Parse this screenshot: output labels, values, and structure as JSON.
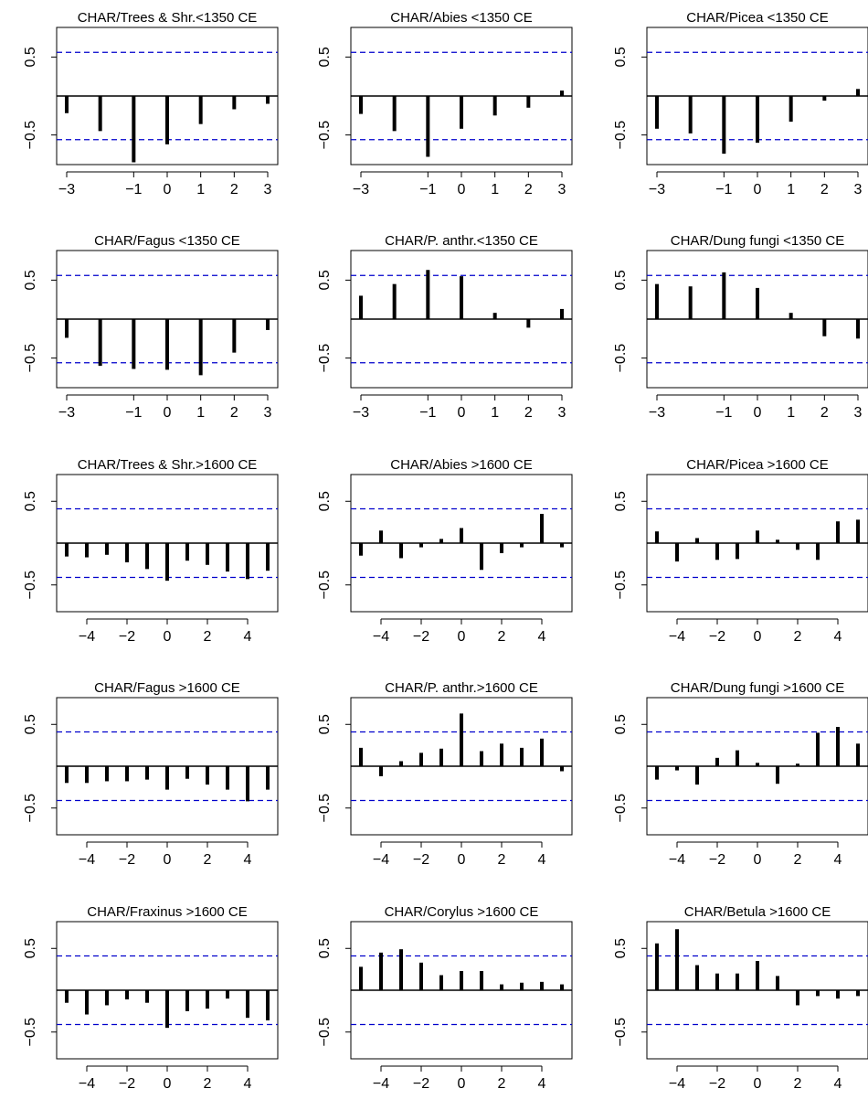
{
  "style": {
    "bar_color": "#000000",
    "confidence_line_color": "#0000cc",
    "axis_color": "#000000",
    "background": "#ffffff"
  },
  "chart_data": [
    {
      "type": "bar",
      "title": "CHAR/Trees & Shr.<1350 CE",
      "x": [
        -3,
        -2,
        -1,
        0,
        1,
        2,
        3
      ],
      "values": [
        -0.22,
        -0.45,
        -0.85,
        -0.62,
        -0.36,
        -0.17,
        -0.1
      ],
      "ci": [
        0.56,
        -0.56
      ],
      "ylim": [
        -0.88,
        0.88
      ],
      "yticks": [
        "0.5",
        "-0.5"
      ],
      "xticks": [
        "-3",
        "-1",
        "0",
        "1",
        "2",
        "3"
      ],
      "xlim": [
        -3.3,
        3.3
      ]
    },
    {
      "type": "bar",
      "title": "CHAR/Abies <1350 CE",
      "x": [
        -3,
        -2,
        -1,
        0,
        1,
        2,
        3
      ],
      "values": [
        -0.23,
        -0.45,
        -0.78,
        -0.42,
        -0.25,
        -0.15,
        0.07
      ],
      "ci": [
        0.56,
        -0.56
      ],
      "ylim": [
        -0.88,
        0.88
      ],
      "yticks": [
        "0.5",
        "-0.5"
      ],
      "xticks": [
        "-3",
        "-1",
        "0",
        "1",
        "2",
        "3"
      ],
      "xlim": [
        -3.3,
        3.3
      ]
    },
    {
      "type": "bar",
      "title": "CHAR/Picea <1350 CE",
      "x": [
        -3,
        -2,
        -1,
        0,
        1,
        2,
        3
      ],
      "values": [
        -0.42,
        -0.48,
        -0.74,
        -0.6,
        -0.33,
        -0.06,
        0.09
      ],
      "ci": [
        0.56,
        -0.56
      ],
      "ylim": [
        -0.88,
        0.88
      ],
      "yticks": [
        "0.5",
        "-0.5"
      ],
      "xticks": [
        "-3",
        "-1",
        "0",
        "1",
        "2",
        "3"
      ],
      "xlim": [
        -3.3,
        3.3
      ]
    },
    {
      "type": "bar",
      "title": "CHAR/Fagus <1350 CE",
      "x": [
        -3,
        -2,
        -1,
        0,
        1,
        2,
        3
      ],
      "values": [
        -0.24,
        -0.6,
        -0.64,
        -0.65,
        -0.72,
        -0.43,
        -0.14
      ],
      "ci": [
        0.56,
        -0.56
      ],
      "ylim": [
        -0.88,
        0.88
      ],
      "yticks": [
        "0.5",
        "-0.5"
      ],
      "xticks": [
        "-3",
        "-1",
        "0",
        "1",
        "2",
        "3"
      ],
      "xlim": [
        -3.3,
        3.3
      ]
    },
    {
      "type": "bar",
      "title": "CHAR/P. anthr.<1350 CE",
      "x": [
        -3,
        -2,
        -1,
        0,
        1,
        2,
        3
      ],
      "values": [
        0.3,
        0.45,
        0.63,
        0.55,
        0.08,
        -0.11,
        0.13
      ],
      "ci": [
        0.56,
        -0.56
      ],
      "ylim": [
        -0.88,
        0.88
      ],
      "yticks": [
        "0.5",
        "-0.5"
      ],
      "xticks": [
        "-3",
        "-1",
        "0",
        "1",
        "2",
        "3"
      ],
      "xlim": [
        -3.3,
        3.3
      ]
    },
    {
      "type": "bar",
      "title": "CHAR/Dung fungi <1350 CE",
      "x": [
        -3,
        -2,
        -1,
        0,
        1,
        2,
        3
      ],
      "values": [
        0.45,
        0.42,
        0.6,
        0.4,
        0.08,
        -0.22,
        -0.25
      ],
      "ci": [
        0.56,
        -0.56
      ],
      "ylim": [
        -0.88,
        0.88
      ],
      "yticks": [
        "0.5",
        "-0.5"
      ],
      "xticks": [
        "-3",
        "-1",
        "0",
        "1",
        "2",
        "3"
      ],
      "xlim": [
        -3.3,
        3.3
      ]
    },
    {
      "type": "bar",
      "title": "CHAR/Trees & Shr.>1600 CE",
      "x": [
        -5,
        -4,
        -3,
        -2,
        -1,
        0,
        1,
        2,
        3,
        4,
        5
      ],
      "values": [
        -0.16,
        -0.17,
        -0.14,
        -0.23,
        -0.31,
        -0.45,
        -0.21,
        -0.26,
        -0.34,
        -0.43,
        -0.33
      ],
      "ci": [
        0.41,
        -0.41
      ],
      "ylim": [
        -0.82,
        0.82
      ],
      "yticks": [
        "0.5",
        "-0.5"
      ],
      "xticks": [
        "-4",
        "-2",
        "0",
        "2",
        "4"
      ],
      "xlim": [
        -5.5,
        5.5
      ]
    },
    {
      "type": "bar",
      "title": "CHAR/Abies >1600 CE",
      "x": [
        -5,
        -4,
        -3,
        -2,
        -1,
        0,
        1,
        2,
        3,
        4,
        5
      ],
      "values": [
        -0.15,
        0.15,
        -0.18,
        -0.05,
        0.05,
        0.18,
        -0.32,
        -0.12,
        -0.05,
        0.35,
        -0.05
      ],
      "ci": [
        0.41,
        -0.41
      ],
      "ylim": [
        -0.82,
        0.82
      ],
      "yticks": [
        "0.5",
        "-0.5"
      ],
      "xticks": [
        "-4",
        "-2",
        "0",
        "2",
        "4"
      ],
      "xlim": [
        -5.5,
        5.5
      ]
    },
    {
      "type": "bar",
      "title": "CHAR/Picea >1600 CE",
      "x": [
        -5,
        -4,
        -3,
        -2,
        -1,
        0,
        1,
        2,
        3,
        4,
        5
      ],
      "values": [
        0.14,
        -0.22,
        0.06,
        -0.2,
        -0.19,
        0.15,
        0.04,
        -0.08,
        -0.2,
        0.26,
        0.28
      ],
      "ci": [
        0.41,
        -0.41
      ],
      "ylim": [
        -0.82,
        0.82
      ],
      "yticks": [
        "0.5",
        "-0.5"
      ],
      "xticks": [
        "-4",
        "-2",
        "0",
        "2",
        "4"
      ],
      "xlim": [
        -5.5,
        5.5
      ]
    },
    {
      "type": "bar",
      "title": "CHAR/Fagus >1600 CE",
      "x": [
        -5,
        -4,
        -3,
        -2,
        -1,
        0,
        1,
        2,
        3,
        4,
        5
      ],
      "values": [
        -0.2,
        -0.2,
        -0.18,
        -0.18,
        -0.16,
        -0.28,
        -0.15,
        -0.22,
        -0.28,
        -0.42,
        -0.28
      ],
      "ci": [
        0.41,
        -0.41
      ],
      "ylim": [
        -0.82,
        0.82
      ],
      "yticks": [
        "0.5",
        "-0.5"
      ],
      "xticks": [
        "-4",
        "-2",
        "0",
        "2",
        "4"
      ],
      "xlim": [
        -5.5,
        5.5
      ]
    },
    {
      "type": "bar",
      "title": "CHAR/P. anthr.>1600 CE",
      "x": [
        -5,
        -4,
        -3,
        -2,
        -1,
        0,
        1,
        2,
        3,
        4,
        5
      ],
      "values": [
        0.22,
        -0.12,
        0.06,
        0.16,
        0.21,
        0.63,
        0.18,
        0.27,
        0.22,
        0.33,
        -0.06
      ],
      "ci": [
        0.41,
        -0.41
      ],
      "ylim": [
        -0.82,
        0.82
      ],
      "yticks": [
        "0.5",
        "-0.5"
      ],
      "xticks": [
        "-4",
        "-2",
        "0",
        "2",
        "4"
      ],
      "xlim": [
        -5.5,
        5.5
      ]
    },
    {
      "type": "bar",
      "title": "CHAR/Dung fungi >1600 CE",
      "x": [
        -5,
        -4,
        -3,
        -2,
        -1,
        0,
        1,
        2,
        3,
        4,
        5
      ],
      "values": [
        -0.16,
        -0.05,
        -0.22,
        0.1,
        0.19,
        0.04,
        -0.21,
        0.03,
        0.4,
        0.47,
        0.27
      ],
      "ci": [
        0.41,
        -0.41
      ],
      "ylim": [
        -0.82,
        0.82
      ],
      "yticks": [
        "0.5",
        "-0.5"
      ],
      "xticks": [
        "-4",
        "-2",
        "0",
        "2",
        "4"
      ],
      "xlim": [
        -5.5,
        5.5
      ]
    },
    {
      "type": "bar",
      "title": "CHAR/Fraxinus >1600 CE",
      "x": [
        -5,
        -4,
        -3,
        -2,
        -1,
        0,
        1,
        2,
        3,
        4,
        5
      ],
      "values": [
        -0.15,
        -0.29,
        -0.18,
        -0.11,
        -0.15,
        -0.45,
        -0.25,
        -0.22,
        -0.1,
        -0.33,
        -0.36
      ],
      "ci": [
        0.41,
        -0.41
      ],
      "ylim": [
        -0.82,
        0.82
      ],
      "yticks": [
        "0.5",
        "-0.5"
      ],
      "xticks": [
        "-4",
        "-2",
        "0",
        "2",
        "4"
      ],
      "xlim": [
        -5.5,
        5.5
      ]
    },
    {
      "type": "bar",
      "title": "CHAR/Corylus >1600 CE",
      "x": [
        -5,
        -4,
        -3,
        -2,
        -1,
        0,
        1,
        2,
        3,
        4,
        5
      ],
      "values": [
        0.28,
        0.45,
        0.49,
        0.33,
        0.18,
        0.23,
        0.23,
        0.07,
        0.09,
        0.1,
        0.07
      ],
      "ci": [
        0.41,
        -0.41
      ],
      "ylim": [
        -0.82,
        0.82
      ],
      "yticks": [
        "0.5",
        "-0.5"
      ],
      "xticks": [
        "-4",
        "-2",
        "0",
        "2",
        "4"
      ],
      "xlim": [
        -5.5,
        5.5
      ]
    },
    {
      "type": "bar",
      "title": "CHAR/Betula >1600 CE",
      "x": [
        -5,
        -4,
        -3,
        -2,
        -1,
        0,
        1,
        2,
        3,
        4,
        5
      ],
      "values": [
        0.56,
        0.73,
        0.3,
        0.2,
        0.2,
        0.35,
        0.17,
        -0.18,
        -0.07,
        -0.1,
        -0.07
      ],
      "ci": [
        0.41,
        -0.41
      ],
      "ylim": [
        -0.82,
        0.82
      ],
      "yticks": [
        "0.5",
        "-0.5"
      ],
      "xticks": [
        "-4",
        "-2",
        "0",
        "2",
        "4"
      ],
      "xlim": [
        -5.5,
        5.5
      ]
    }
  ]
}
